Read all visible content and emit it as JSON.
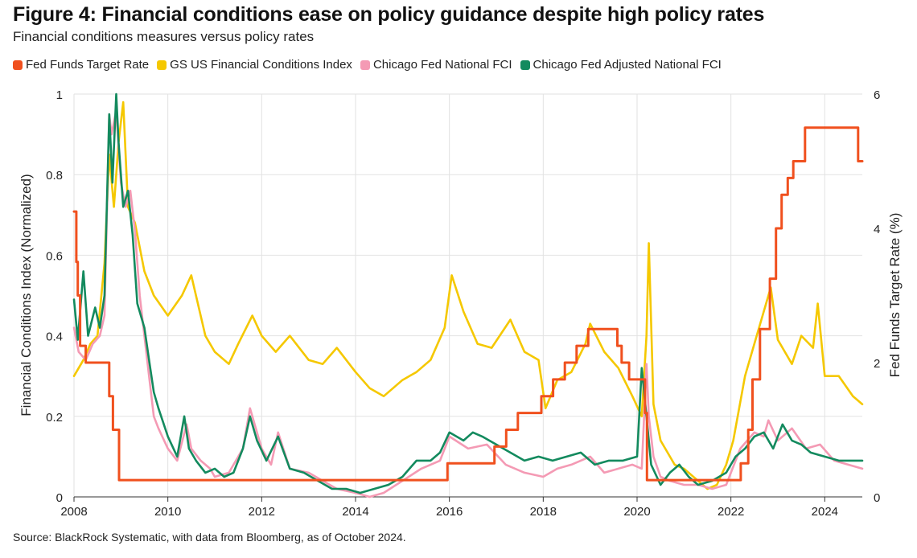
{
  "header": {
    "title": "Figure 4: Financial conditions ease on policy guidance despite high policy rates",
    "subtitle": "Financial conditions measures versus policy rates"
  },
  "footer": {
    "source": "Source: BlackRock Systematic, with data from Bloomberg, as of October 2024."
  },
  "chart_data": {
    "type": "line",
    "title": "Figure 4: Financial conditions ease on policy guidance despite high policy rates",
    "subtitle": "Financial conditions measures versus policy rates",
    "xlabel": "",
    "ylabel": "Financial Conditions Index (Normalized)",
    "y2label": "Fed Funds Target Rate (%)",
    "xlim": [
      2008,
      2024.8
    ],
    "ylim": [
      0,
      1
    ],
    "y2lim": [
      0,
      6
    ],
    "x_ticks": [
      "2008",
      "2010",
      "2012",
      "2014",
      "2016",
      "2018",
      "2020",
      "2022",
      "2024"
    ],
    "y_ticks": [
      "0",
      "0.2",
      "0.4",
      "0.6",
      "0.8",
      "1"
    ],
    "y2_ticks": [
      "0",
      "2",
      "4",
      "6"
    ],
    "grid": true,
    "legend_position": "top-left",
    "series": [
      {
        "name": "Fed Funds Target Rate",
        "axis": "right",
        "color": "#f0501e",
        "step": true,
        "x": [
          2008.0,
          2008.05,
          2008.08,
          2008.13,
          2008.25,
          2008.33,
          2008.75,
          2008.83,
          2008.96,
          2015.96,
          2016.96,
          2017.21,
          2017.46,
          2017.96,
          2018.21,
          2018.46,
          2018.71,
          2018.96,
          2019.58,
          2019.67,
          2019.83,
          2020.17,
          2020.21,
          2022.21,
          2022.37,
          2022.46,
          2022.62,
          2022.83,
          2022.96,
          2023.08,
          2023.21,
          2023.33,
          2023.58,
          2024.71,
          2024.8
        ],
        "y": [
          4.25,
          3.5,
          3.0,
          2.25,
          2.0,
          2.0,
          1.5,
          1.0,
          0.25,
          0.5,
          0.75,
          1.0,
          1.25,
          1.5,
          1.75,
          2.0,
          2.25,
          2.5,
          2.25,
          2.0,
          1.75,
          1.25,
          0.25,
          0.5,
          1.0,
          1.75,
          2.5,
          3.25,
          4.0,
          4.5,
          4.75,
          5.0,
          5.5,
          5.0,
          5.0
        ]
      },
      {
        "name": "GS US Financial Conditions Index",
        "axis": "left",
        "color": "#f5c800",
        "x": [
          2008.0,
          2008.2,
          2008.35,
          2008.5,
          2008.65,
          2008.75,
          2008.85,
          2008.95,
          2009.05,
          2009.15,
          2009.3,
          2009.5,
          2009.7,
          2010.0,
          2010.3,
          2010.5,
          2010.8,
          2011.0,
          2011.3,
          2011.5,
          2011.8,
          2012.0,
          2012.3,
          2012.6,
          2013.0,
          2013.3,
          2013.6,
          2014.0,
          2014.3,
          2014.6,
          2015.0,
          2015.3,
          2015.6,
          2015.9,
          2016.05,
          2016.3,
          2016.6,
          2016.9,
          2017.3,
          2017.6,
          2017.9,
          2018.05,
          2018.3,
          2018.6,
          2018.9,
          2019.0,
          2019.3,
          2019.6,
          2019.9,
          2020.1,
          2020.2,
          2020.25,
          2020.35,
          2020.5,
          2020.8,
          2021.0,
          2021.3,
          2021.5,
          2021.7,
          2021.9,
          2022.05,
          2022.3,
          2022.5,
          2022.75,
          2022.85,
          2023.0,
          2023.3,
          2023.5,
          2023.75,
          2023.85,
          2024.0,
          2024.3,
          2024.6,
          2024.8
        ],
        "y": [
          0.3,
          0.34,
          0.38,
          0.4,
          0.58,
          0.85,
          0.72,
          0.88,
          0.98,
          0.72,
          0.68,
          0.56,
          0.5,
          0.45,
          0.5,
          0.55,
          0.4,
          0.36,
          0.33,
          0.38,
          0.45,
          0.4,
          0.36,
          0.4,
          0.34,
          0.33,
          0.37,
          0.31,
          0.27,
          0.25,
          0.29,
          0.31,
          0.34,
          0.42,
          0.55,
          0.46,
          0.38,
          0.37,
          0.44,
          0.36,
          0.34,
          0.22,
          0.29,
          0.31,
          0.38,
          0.43,
          0.36,
          0.32,
          0.25,
          0.2,
          0.4,
          0.63,
          0.23,
          0.14,
          0.08,
          0.07,
          0.04,
          0.02,
          0.03,
          0.08,
          0.14,
          0.3,
          0.38,
          0.48,
          0.52,
          0.39,
          0.33,
          0.4,
          0.37,
          0.48,
          0.3,
          0.3,
          0.25,
          0.23
        ]
      },
      {
        "name": "Chicago Fed National FCI",
        "axis": "left",
        "color": "#f49ab4",
        "x": [
          2008.0,
          2008.1,
          2008.25,
          2008.4,
          2008.55,
          2008.65,
          2008.75,
          2008.8,
          2008.9,
          2009.0,
          2009.1,
          2009.2,
          2009.3,
          2009.4,
          2009.5,
          2009.6,
          2009.7,
          2009.8,
          2010.0,
          2010.2,
          2010.4,
          2010.5,
          2010.7,
          2010.9,
          2011.0,
          2011.3,
          2011.6,
          2011.75,
          2012.0,
          2012.2,
          2012.35,
          2012.6,
          2013.0,
          2013.3,
          2013.6,
          2014.0,
          2014.3,
          2014.6,
          2015.0,
          2015.4,
          2015.8,
          2016.0,
          2016.4,
          2016.8,
          2017.2,
          2017.6,
          2018.0,
          2018.3,
          2018.6,
          2019.0,
          2019.3,
          2019.6,
          2019.9,
          2020.1,
          2020.2,
          2020.25,
          2020.35,
          2020.5,
          2020.7,
          2021.0,
          2021.3,
          2021.6,
          2021.9,
          2022.2,
          2022.5,
          2022.7,
          2022.8,
          2023.0,
          2023.3,
          2023.6,
          2023.9,
          2024.2,
          2024.5,
          2024.8
        ],
        "y": [
          0.42,
          0.36,
          0.34,
          0.38,
          0.4,
          0.45,
          0.95,
          0.9,
          0.96,
          0.78,
          0.72,
          0.76,
          0.66,
          0.5,
          0.4,
          0.3,
          0.2,
          0.17,
          0.12,
          0.09,
          0.18,
          0.12,
          0.09,
          0.07,
          0.05,
          0.06,
          0.12,
          0.22,
          0.12,
          0.08,
          0.16,
          0.07,
          0.06,
          0.04,
          0.02,
          0.01,
          0.0,
          0.01,
          0.04,
          0.07,
          0.09,
          0.15,
          0.12,
          0.13,
          0.08,
          0.06,
          0.05,
          0.07,
          0.08,
          0.1,
          0.06,
          0.07,
          0.08,
          0.07,
          0.33,
          0.2,
          0.1,
          0.05,
          0.04,
          0.03,
          0.03,
          0.02,
          0.03,
          0.12,
          0.16,
          0.15,
          0.19,
          0.14,
          0.17,
          0.12,
          0.13,
          0.09,
          0.08,
          0.07
        ]
      },
      {
        "name": "Chicago Fed Adjusted National FCI",
        "axis": "left",
        "color": "#138a5e",
        "x": [
          2008.0,
          2008.08,
          2008.2,
          2008.3,
          2008.45,
          2008.55,
          2008.65,
          2008.75,
          2008.82,
          2008.9,
          2008.95,
          2009.05,
          2009.15,
          2009.25,
          2009.35,
          2009.5,
          2009.6,
          2009.7,
          2009.8,
          2010.0,
          2010.2,
          2010.35,
          2010.45,
          2010.6,
          2010.8,
          2011.0,
          2011.2,
          2011.4,
          2011.6,
          2011.75,
          2011.9,
          2012.1,
          2012.35,
          2012.6,
          2012.9,
          2013.2,
          2013.5,
          2013.8,
          2014.1,
          2014.4,
          2014.7,
          2015.0,
          2015.3,
          2015.6,
          2015.8,
          2016.0,
          2016.3,
          2016.5,
          2016.7,
          2017.0,
          2017.3,
          2017.6,
          2017.9,
          2018.2,
          2018.5,
          2018.8,
          2019.1,
          2019.4,
          2019.7,
          2020.0,
          2020.1,
          2020.2,
          2020.3,
          2020.5,
          2020.7,
          2020.9,
          2021.1,
          2021.3,
          2021.6,
          2021.9,
          2022.1,
          2022.3,
          2022.5,
          2022.7,
          2022.9,
          2023.1,
          2023.3,
          2023.5,
          2023.7,
          2024.0,
          2024.3,
          2024.6,
          2024.8
        ],
        "y": [
          0.49,
          0.39,
          0.56,
          0.4,
          0.47,
          0.42,
          0.5,
          0.95,
          0.78,
          1.0,
          0.88,
          0.72,
          0.76,
          0.65,
          0.48,
          0.42,
          0.34,
          0.26,
          0.22,
          0.15,
          0.1,
          0.2,
          0.12,
          0.09,
          0.06,
          0.07,
          0.05,
          0.06,
          0.12,
          0.2,
          0.14,
          0.09,
          0.15,
          0.07,
          0.06,
          0.04,
          0.02,
          0.02,
          0.01,
          0.02,
          0.03,
          0.05,
          0.09,
          0.09,
          0.11,
          0.16,
          0.14,
          0.16,
          0.15,
          0.13,
          0.11,
          0.09,
          0.1,
          0.09,
          0.1,
          0.11,
          0.08,
          0.09,
          0.09,
          0.1,
          0.32,
          0.2,
          0.08,
          0.03,
          0.06,
          0.08,
          0.05,
          0.03,
          0.04,
          0.06,
          0.1,
          0.12,
          0.15,
          0.16,
          0.12,
          0.18,
          0.14,
          0.13,
          0.11,
          0.1,
          0.09,
          0.09,
          0.09
        ]
      }
    ]
  }
}
